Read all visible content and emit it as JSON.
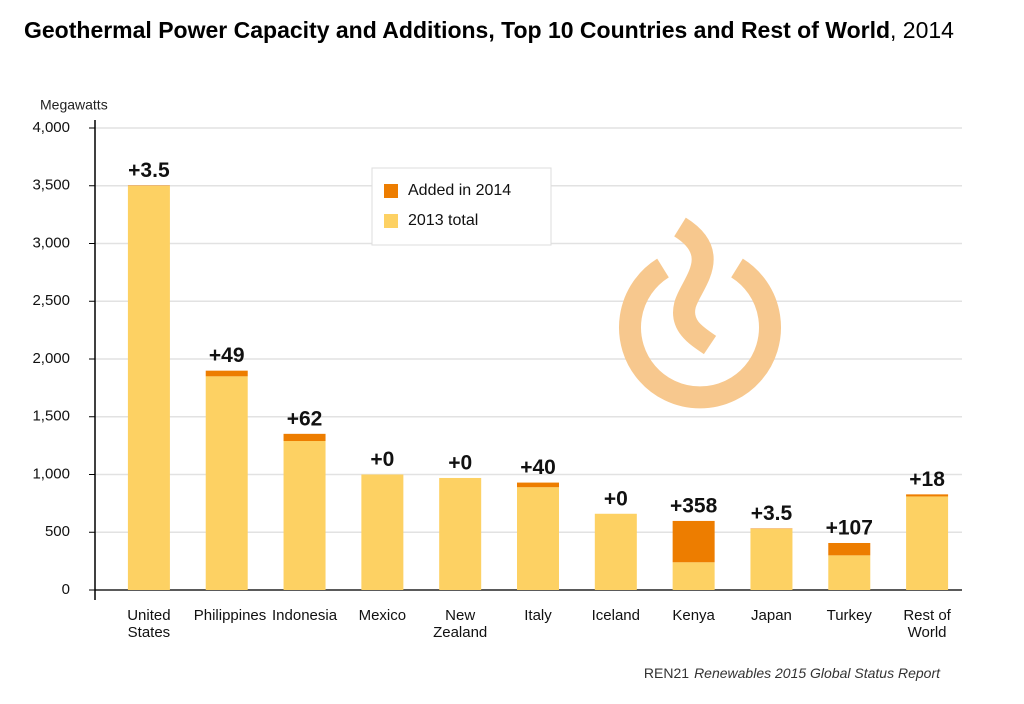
{
  "chart_data": {
    "type": "stacked_bar",
    "title": "Geothermal Power Capacity and Additions, Top 10 Countries and Rest of World",
    "title_suffix": ", 2014",
    "y_label": "Megawatts",
    "categories": [
      "United States",
      "Philippines",
      "Indonesia",
      "Mexico",
      "New Zealand",
      "Italy",
      "Iceland",
      "Kenya",
      "Japan",
      "Turkey",
      "Rest of World"
    ],
    "series": [
      {
        "name": "2013 total",
        "color": "#fdd163",
        "values": [
          3500,
          1850,
          1290,
          1000,
          970,
          890,
          660,
          240,
          530,
          300,
          810
        ]
      },
      {
        "name": "Added in 2014",
        "color": "#ed7d00",
        "values": [
          3.5,
          49,
          62,
          0,
          0,
          40,
          0,
          358,
          3.5,
          107,
          18
        ],
        "value_labels": [
          "+3.5",
          "+49",
          "+62",
          "+0",
          "+0",
          "+40",
          "+0",
          "+358",
          "+3.5",
          "+107",
          "+18"
        ]
      }
    ],
    "ylim": [
      0,
      4000
    ],
    "yticks": [
      0,
      500,
      {
        "value": 1000,
        "label": "1,000"
      },
      {
        "value": 1500,
        "label": "1,500"
      },
      {
        "value": 2000,
        "label": "2,000"
      },
      {
        "value": 2500,
        "label": "2,500"
      },
      {
        "value": 3000,
        "label": "3,000"
      },
      {
        "value": 3500,
        "label": "3,500"
      },
      {
        "value": 4000,
        "label": "4,000"
      }
    ],
    "grid": true,
    "source": "REN21",
    "source_title": "Renewables 2015 Global Status Report"
  }
}
